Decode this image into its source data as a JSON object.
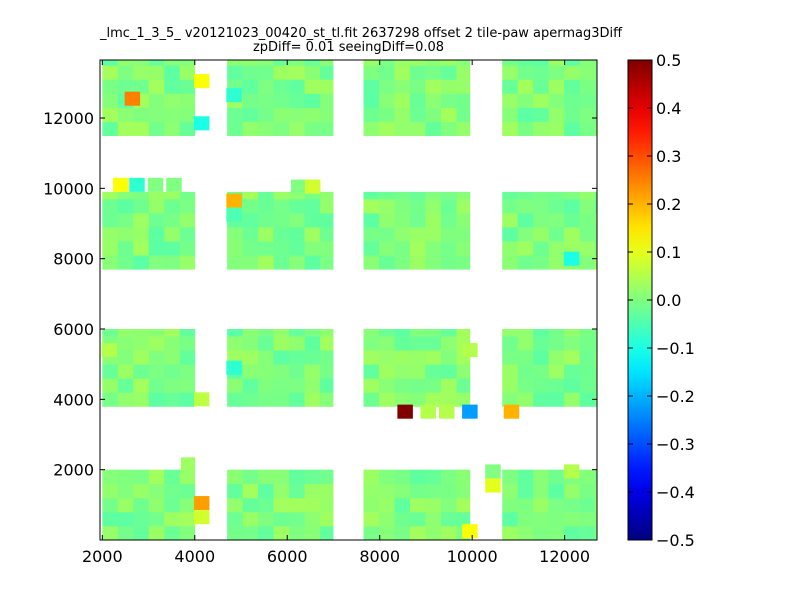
{
  "chart_data": {
    "type": "heatmap",
    "title": "_lmc_1_3_5_ v20121023_00420_st_tl.fit 2637298 offset 2 tile-paw apermag3Diff",
    "subtitle": "zpDiff= 0.01 seeingDiff=0.08",
    "xlim": [
      1950,
      12700
    ],
    "ylim": [
      0,
      13650
    ],
    "x_ticks": [
      2000,
      4000,
      6000,
      8000,
      10000,
      12000
    ],
    "y_ticks": [
      2000,
      4000,
      6000,
      8000,
      10000,
      12000
    ],
    "colorbar": {
      "colormap": "jet",
      "range": [
        -0.5,
        0.5
      ],
      "ticks": [
        "0.5",
        "0.4",
        "0.3",
        "0.2",
        "0.1",
        "0.0",
        "−0.1",
        "−0.2",
        "−0.3",
        "−0.4",
        "−0.5"
      ]
    },
    "default_value": 0.0,
    "cell_size": [
      335,
      400
    ],
    "regions": [
      {
        "x": [
          2000,
          4000
        ],
        "y": [
          0,
          2000
        ]
      },
      {
        "x": [
          3700,
          4000
        ],
        "y": [
          2000,
          2350
        ]
      },
      {
        "x": [
          4700,
          6990
        ],
        "y": [
          0,
          2000
        ]
      },
      {
        "x": [
          7650,
          9950
        ],
        "y": [
          0,
          2000
        ]
      },
      {
        "x": [
          10650,
          12700
        ],
        "y": [
          0,
          2000
        ]
      },
      {
        "x": [
          2000,
          4000
        ],
        "y": [
          3800,
          6000
        ]
      },
      {
        "x": [
          4700,
          6990
        ],
        "y": [
          3800,
          6000
        ]
      },
      {
        "x": [
          7650,
          9950
        ],
        "y": [
          3800,
          6000
        ]
      },
      {
        "x": [
          10650,
          12700
        ],
        "y": [
          3800,
          6000
        ]
      },
      {
        "x": [
          2000,
          4000
        ],
        "y": [
          7700,
          9900
        ]
      },
      {
        "x": [
          4700,
          6990
        ],
        "y": [
          7700,
          9900
        ]
      },
      {
        "x": [
          7650,
          9950
        ],
        "y": [
          7700,
          9900
        ]
      },
      {
        "x": [
          10650,
          12700
        ],
        "y": [
          7700,
          9900
        ]
      },
      {
        "x": [
          2000,
          4000
        ],
        "y": [
          11500,
          13650
        ]
      },
      {
        "x": [
          4700,
          6990
        ],
        "y": [
          11500,
          13650
        ]
      },
      {
        "x": [
          7650,
          9950
        ],
        "y": [
          11500,
          13650
        ]
      },
      {
        "x": [
          10650,
          12700
        ],
        "y": [
          11500,
          13650
        ]
      }
    ],
    "cells": [
      {
        "x": 2650,
        "y": 12550,
        "value": 0.25
      },
      {
        "x": 4150,
        "y": 13050,
        "value": 0.12
      },
      {
        "x": 4150,
        "y": 11850,
        "value": -0.1
      },
      {
        "x": 4850,
        "y": 12650,
        "value": -0.08
      },
      {
        "x": 2400,
        "y": 10100,
        "value": 0.12
      },
      {
        "x": 2750,
        "y": 10100,
        "value": -0.08
      },
      {
        "x": 3150,
        "y": 10100,
        "value": 0.0
      },
      {
        "x": 3550,
        "y": 10100,
        "value": 0.0
      },
      {
        "x": 4850,
        "y": 9650,
        "value": 0.2
      },
      {
        "x": 4850,
        "y": 9250,
        "value": -0.05
      },
      {
        "x": 6250,
        "y": 10050,
        "value": 0.0
      },
      {
        "x": 6550,
        "y": 10050,
        "value": 0.08
      },
      {
        "x": 12150,
        "y": 8000,
        "value": -0.1
      },
      {
        "x": 2150,
        "y": 5400,
        "value": 0.05
      },
      {
        "x": 4150,
        "y": 4000,
        "value": 0.06
      },
      {
        "x": 4850,
        "y": 4900,
        "value": -0.08
      },
      {
        "x": 9950,
        "y": 5400,
        "value": 0.05
      },
      {
        "x": 8550,
        "y": 3650,
        "value": 0.5
      },
      {
        "x": 9050,
        "y": 3650,
        "value": 0.05
      },
      {
        "x": 9450,
        "y": 3650,
        "value": 0.05
      },
      {
        "x": 9950,
        "y": 3650,
        "value": -0.22
      },
      {
        "x": 10850,
        "y": 3650,
        "value": 0.2
      },
      {
        "x": 4150,
        "y": 1050,
        "value": 0.22
      },
      {
        "x": 4150,
        "y": 650,
        "value": 0.08
      },
      {
        "x": 10450,
        "y": 1550,
        "value": 0.1
      },
      {
        "x": 10450,
        "y": 1950,
        "value": 0.0
      },
      {
        "x": 12150,
        "y": 1950,
        "value": 0.05
      },
      {
        "x": 9950,
        "y": 250,
        "value": 0.12
      }
    ]
  }
}
